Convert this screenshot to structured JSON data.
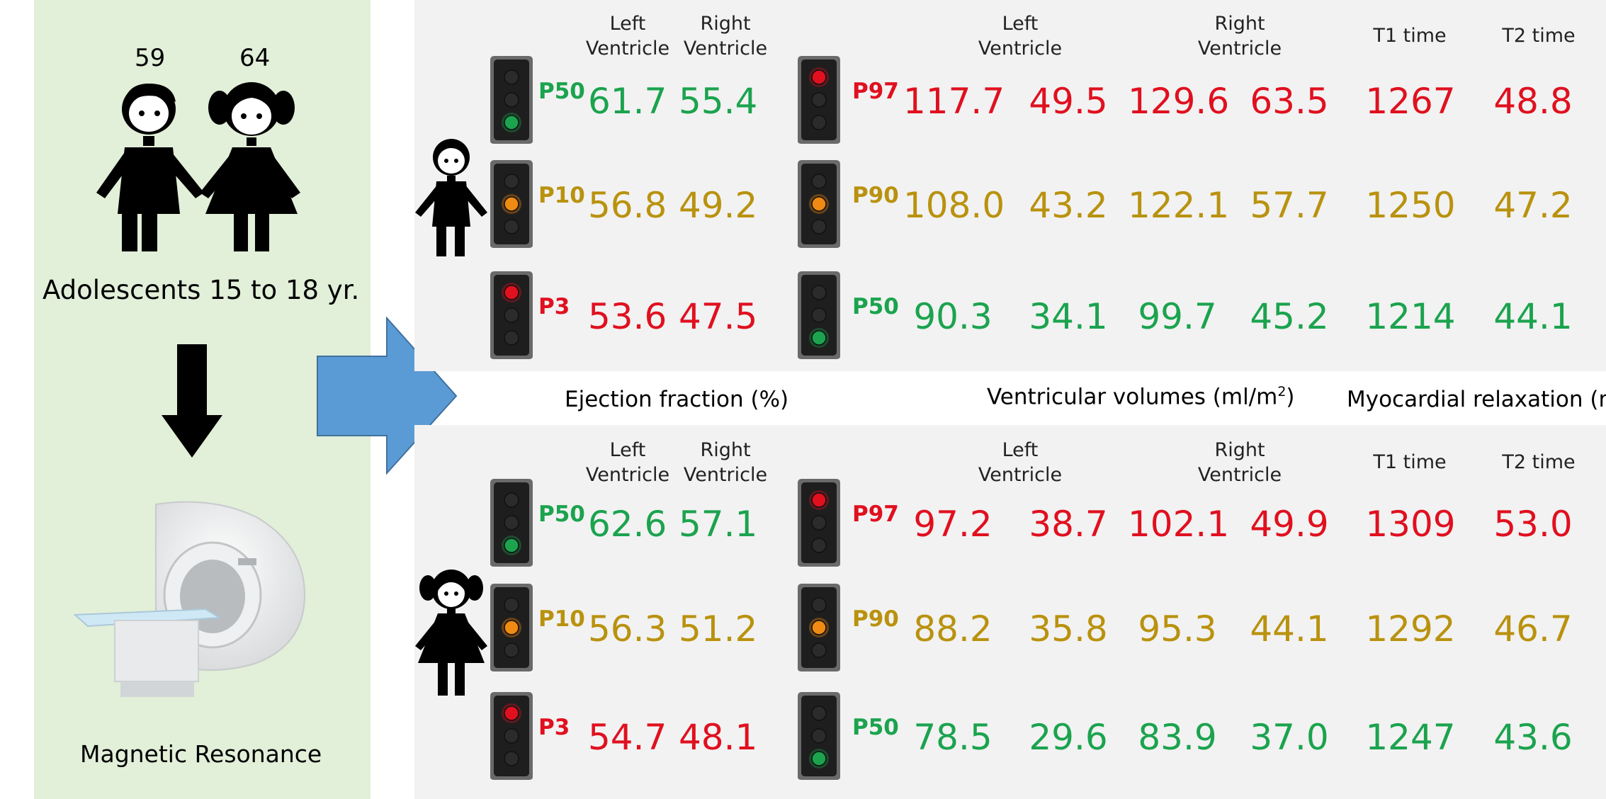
{
  "left": {
    "counts": {
      "boys": "59",
      "girls": "64"
    },
    "cohort_label": "Adolescents 15 to 18 yr.",
    "mri_label": "Magnetic Resonance"
  },
  "headers": {
    "left_ventricle": [
      "Left",
      "Ventricle"
    ],
    "right_ventricle": [
      "Right",
      "Ventricle"
    ],
    "t1": "T1 time",
    "t2": "T2 time"
  },
  "sections": {
    "ejection_fraction": "Ejection fraction (%)",
    "volumes_prefix": "Ventricular volumes (ml/m",
    "volumes_sup": "2",
    "volumes_suffix": ")",
    "relaxation": "Myocardial relaxation (ms)"
  },
  "colors": {
    "green": "#1ba34e",
    "amber": "#b9920e",
    "red": "#e0101f"
  },
  "boys": {
    "ef_rows": [
      {
        "pct": "P50",
        "status": "green",
        "lv": "61.7",
        "rv": "55.4"
      },
      {
        "pct": "P10",
        "status": "amber",
        "lv": "56.8",
        "rv": "49.2"
      },
      {
        "pct": "P3",
        "status": "red",
        "lv": "53.6",
        "rv": "47.5"
      }
    ],
    "vol_rows": [
      {
        "pct": "P97",
        "status": "red",
        "values": [
          "117.7",
          "49.5",
          "129.6",
          "63.5",
          "1267",
          "48.8"
        ]
      },
      {
        "pct": "P90",
        "status": "amber",
        "values": [
          "108.0",
          "43.2",
          "122.1",
          "57.7",
          "1250",
          "47.2"
        ]
      },
      {
        "pct": "P50",
        "status": "green",
        "values": [
          "90.3",
          "34.1",
          "99.7",
          "45.2",
          "1214",
          "44.1"
        ]
      }
    ]
  },
  "girls": {
    "ef_rows": [
      {
        "pct": "P50",
        "status": "green",
        "lv": "62.6",
        "rv": "57.1"
      },
      {
        "pct": "P10",
        "status": "amber",
        "lv": "56.3",
        "rv": "51.2"
      },
      {
        "pct": "P3",
        "status": "red",
        "lv": "54.7",
        "rv": "48.1"
      }
    ],
    "vol_rows": [
      {
        "pct": "P97",
        "status": "red",
        "values": [
          "97.2",
          "38.7",
          "102.1",
          "49.9",
          "1309",
          "53.0"
        ]
      },
      {
        "pct": "P90",
        "status": "amber",
        "values": [
          "88.2",
          "35.8",
          "95.3",
          "44.1",
          "1292",
          "46.7"
        ]
      },
      {
        "pct": "P50",
        "status": "green",
        "values": [
          "78.5",
          "29.6",
          "83.9",
          "37.0",
          "1247",
          "43.6"
        ]
      }
    ]
  }
}
